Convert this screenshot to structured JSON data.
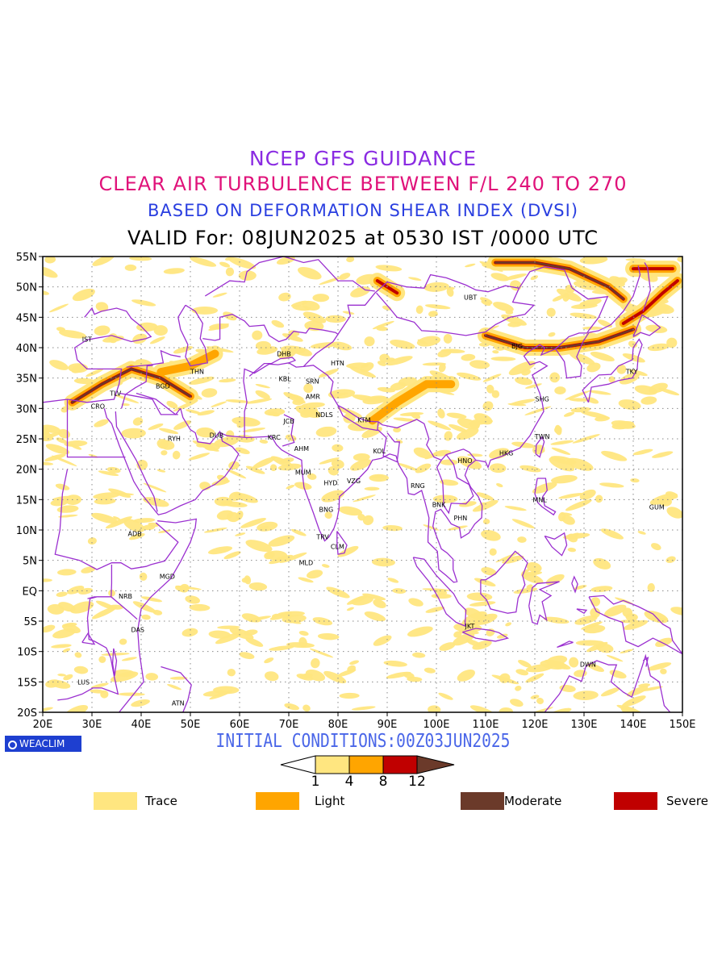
{
  "titles": {
    "line1": "NCEP GFS GUIDANCE",
    "line2": "CLEAR AIR TURBULENCE BETWEEN F/L 240 TO 270",
    "line3": "BASED ON DEFORMATION SHEAR INDEX (DVSI)",
    "line4": "VALID For: 08JUN2025 at 0530 IST /0000 UTC"
  },
  "map": {
    "lon_range": [
      20,
      150
    ],
    "lat_range": [
      -20,
      55
    ],
    "x_ticks": [
      "20E",
      "30E",
      "40E",
      "50E",
      "60E",
      "70E",
      "80E",
      "90E",
      "100E",
      "110E",
      "120E",
      "130E",
      "140E",
      "150E"
    ],
    "y_ticks": [
      "55N",
      "50N",
      "45N",
      "40N",
      "35N",
      "30N",
      "25N",
      "20N",
      "15N",
      "10N",
      "5N",
      "EQ",
      "5S",
      "10S",
      "15S",
      "20S"
    ],
    "grid": "dotted",
    "colors": {
      "coast": "#9b30d0",
      "trace": "#ffe680",
      "light": "#ffa500",
      "moderate": "#6b3a2a",
      "severe": "#c00000"
    },
    "stations": [
      {
        "code": "UBT",
        "lon": 106.9,
        "lat": 47.9
      },
      {
        "code": "IST",
        "lon": 29.0,
        "lat": 41.0
      },
      {
        "code": "BJG",
        "lon": 116.4,
        "lat": 39.9
      },
      {
        "code": "DHB",
        "lon": 69.0,
        "lat": 38.6
      },
      {
        "code": "HTN",
        "lon": 79.9,
        "lat": 37.1
      },
      {
        "code": "TKY",
        "lon": 139.7,
        "lat": 35.7
      },
      {
        "code": "THN",
        "lon": 51.4,
        "lat": 35.7
      },
      {
        "code": "KBL",
        "lon": 69.2,
        "lat": 34.5
      },
      {
        "code": "SRN",
        "lon": 74.8,
        "lat": 34.1
      },
      {
        "code": "BGD",
        "lon": 44.4,
        "lat": 33.3
      },
      {
        "code": "TLV",
        "lon": 34.8,
        "lat": 32.1
      },
      {
        "code": "AMR",
        "lon": 74.9,
        "lat": 31.6
      },
      {
        "code": "SHG",
        "lon": 121.5,
        "lat": 31.2
      },
      {
        "code": "CRO",
        "lon": 31.2,
        "lat": 30.0
      },
      {
        "code": "JCB",
        "lon": 70.0,
        "lat": 27.5
      },
      {
        "code": "NDLS",
        "lon": 77.2,
        "lat": 28.6
      },
      {
        "code": "KTM",
        "lon": 85.3,
        "lat": 27.7
      },
      {
        "code": "RYH",
        "lon": 46.7,
        "lat": 24.7
      },
      {
        "code": "DUB",
        "lon": 55.3,
        "lat": 25.2
      },
      {
        "code": "KRC",
        "lon": 67.0,
        "lat": 24.9
      },
      {
        "code": "TWN",
        "lon": 121.5,
        "lat": 25.0
      },
      {
        "code": "AHM",
        "lon": 72.6,
        "lat": 23.0
      },
      {
        "code": "KOL",
        "lon": 88.4,
        "lat": 22.6
      },
      {
        "code": "HKG",
        "lon": 114.2,
        "lat": 22.3
      },
      {
        "code": "HNO",
        "lon": 105.8,
        "lat": 21.0
      },
      {
        "code": "MUM",
        "lon": 72.9,
        "lat": 19.1
      },
      {
        "code": "HYD",
        "lon": 78.5,
        "lat": 17.4
      },
      {
        "code": "VZG",
        "lon": 83.2,
        "lat": 17.7
      },
      {
        "code": "RNG",
        "lon": 96.2,
        "lat": 16.9
      },
      {
        "code": "MNL",
        "lon": 121.0,
        "lat": 14.6
      },
      {
        "code": "GUM",
        "lon": 144.8,
        "lat": 13.4
      },
      {
        "code": "BNK",
        "lon": 100.5,
        "lat": 13.8
      },
      {
        "code": "BNG",
        "lon": 77.6,
        "lat": 13.0
      },
      {
        "code": "PHN",
        "lon": 104.9,
        "lat": 11.6
      },
      {
        "code": "ADB",
        "lon": 38.7,
        "lat": 9.0
      },
      {
        "code": "TRV",
        "lon": 76.9,
        "lat": 8.5
      },
      {
        "code": "CLM",
        "lon": 79.9,
        "lat": 6.9
      },
      {
        "code": "MLD",
        "lon": 73.5,
        "lat": 4.2
      },
      {
        "code": "MGD",
        "lon": 45.3,
        "lat": 2.0
      },
      {
        "code": "NRB",
        "lon": 36.8,
        "lat": -1.3
      },
      {
        "code": "DAS",
        "lon": 39.3,
        "lat": -6.8
      },
      {
        "code": "JKT",
        "lon": 106.8,
        "lat": -6.2
      },
      {
        "code": "DWN",
        "lon": 130.8,
        "lat": -12.5
      },
      {
        "code": "LUS",
        "lon": 28.3,
        "lat": -15.4
      },
      {
        "code": "ATN",
        "lon": 47.5,
        "lat": -18.9
      }
    ]
  },
  "initial_conditions": "INITIAL CONDITIONS:00Z03JUN2025",
  "badge": "WEACLIM",
  "colorbar": {
    "ticks": [
      "1",
      "4",
      "8",
      "12"
    ],
    "colors": [
      "#ffffff",
      "#ffe680",
      "#ffa500",
      "#c00000",
      "#6b3a2a"
    ]
  },
  "legend": [
    {
      "label": "Trace",
      "color": "#ffe680"
    },
    {
      "label": "Light",
      "color": "#ffa500"
    },
    {
      "label": "Moderate",
      "color": "#6b3a2a"
    },
    {
      "label": "Severe",
      "color": "#c00000"
    }
  ]
}
